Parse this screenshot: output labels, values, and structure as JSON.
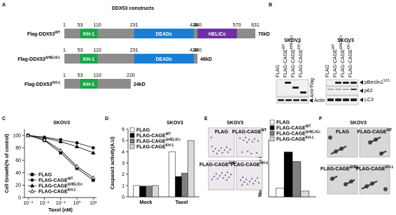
{
  "panel_labels": [
    "A",
    "B",
    "C",
    "D",
    "E",
    "F"
  ],
  "constructs": {
    "title": "DDX53 constructs",
    "rows": [
      {
        "name": "Flag-DDX53",
        "sup": "WT",
        "size": "70kD",
        "end": 631,
        "domains": [
          {
            "label": "KH-1",
            "start": 53,
            "end": 110,
            "color": "#1aa64a"
          },
          {
            "label": "DEADc",
            "start": 231,
            "end": 428,
            "color": "#1a7fd4"
          },
          {
            "label": "HELICc",
            "start": 440,
            "end": 570,
            "color": "#7030a0"
          }
        ],
        "positions": [
          1,
          53,
          110,
          231,
          428,
          440,
          570,
          631
        ]
      },
      {
        "name": "Flag-DDX53",
        "sup": "ΔHELICc",
        "size": "48kD",
        "end": 440,
        "domains": [
          {
            "label": "KH-1",
            "start": 53,
            "end": 110,
            "color": "#1aa64a"
          },
          {
            "label": "DEADc",
            "start": 231,
            "end": 428,
            "color": "#1a7fd4"
          }
        ],
        "positions": [
          1,
          53,
          110,
          231,
          428,
          440
        ]
      },
      {
        "name": "Flag-DDX53",
        "sup": "KH-1",
        "size": "24kD",
        "end": 220,
        "domains": [
          {
            "label": "KH-1",
            "start": 53,
            "end": 110,
            "color": "#1aa64a"
          }
        ],
        "positions": [
          1,
          53,
          110,
          220
        ]
      }
    ]
  },
  "blots": {
    "cell": "SKOV3",
    "lanes": [
      {
        "name": "FLAG",
        "sup": ""
      },
      {
        "name": "FLAG-CAGE",
        "sup": "WT"
      },
      {
        "name": "FLAG-CAGE",
        "sup": "ΔHELICc"
      },
      {
        "name": "FLAG-CAGE",
        "sup": "KH-1"
      }
    ],
    "antibody": "Anti-Flag",
    "left_marker": {
      "name": "Actin",
      "sup": ""
    },
    "right_markers": [
      {
        "name": "pBeclin1",
        "sup": "S15"
      },
      {
        "name": "p62",
        "sup": ""
      },
      {
        "name": "LC3",
        "sup": ""
      }
    ]
  },
  "invasion_images": {
    "title": "SKOV3",
    "labels": [
      {
        "name": "FLAG",
        "sup": ""
      },
      {
        "name": "FLAG-CAGE",
        "sup": "WT"
      },
      {
        "name": "FLAG-CAGE",
        "sup": "ΔHELICc"
      },
      {
        "name": "FLAG-CAGE",
        "sup": "KH-1"
      }
    ]
  },
  "colony_images": {
    "title": "SKOV3",
    "labels": [
      {
        "name": "FLAG",
        "sup": ""
      },
      {
        "name": "FLAG-CAGE",
        "sup": "WT"
      },
      {
        "name": "FLAG-CAGE",
        "sup": "ΔHELICc"
      },
      {
        "name": "FLAG-CAGE",
        "sup": "KH-1"
      }
    ]
  },
  "chart_data": [
    {
      "type": "line",
      "title": "SKOV3",
      "y_label": "Cell Growth(% of control)",
      "x_label": "Taxol (nM)",
      "log_x": true,
      "x": [
        0.001,
        0.01,
        0.1,
        1,
        10
      ],
      "xlim": [
        0.0006,
        16
      ],
      "xticks": [
        {
          "value": 0.001,
          "label": "10⁻³"
        },
        {
          "value": 0.01,
          "label": "10⁻²"
        },
        {
          "value": 0.1,
          "label": "10⁻¹"
        },
        {
          "value": 1,
          "label": "10⁰"
        },
        {
          "value": 10,
          "label": "10¹"
        }
      ],
      "ylim": [
        0,
        110
      ],
      "yticks": [
        0,
        20,
        40,
        60,
        80,
        100
      ],
      "series": [
        {
          "name": "FLAG",
          "sup": "",
          "color": "#000000",
          "marker": "square",
          "filled": true,
          "values": [
            100,
            92,
            72,
            47,
            28
          ]
        },
        {
          "name": "FLAG-CAGE",
          "sup": "WT",
          "color": "#000000",
          "marker": "circle",
          "filled": true,
          "values": [
            100,
            97,
            93,
            88,
            80
          ]
        },
        {
          "name": "FLAG-CAGE",
          "sup": "ΔHELICc",
          "color": "#000000",
          "marker": "triangle",
          "filled": true,
          "values": [
            100,
            96,
            90,
            82,
            72
          ]
        },
        {
          "name": "FLAG-CAGE",
          "sup": "KH-1",
          "color": "#000000",
          "marker": "triangle",
          "filled": false,
          "values": [
            100,
            93,
            76,
            50,
            32
          ]
        }
      ]
    },
    {
      "type": "bar",
      "title": "SKOV3",
      "y_label": "Caspase3 activity(A.U)",
      "categories": [
        "Mock",
        "Taxol"
      ],
      "ylim": [
        0,
        6
      ],
      "yticks": [
        0,
        1,
        2,
        3,
        4,
        5,
        6
      ],
      "series": [
        {
          "name": "FLAG",
          "sup": "",
          "color": "#ffffff",
          "values": [
            1,
            4
          ]
        },
        {
          "name": "FLAG-CAGE",
          "sup": "WT",
          "color": "#000000",
          "values": [
            0.95,
            1.8
          ]
        },
        {
          "name": "FLAG-CAGE",
          "sup": "ΔHELICc",
          "color": "#7f7f7f",
          "values": [
            0.95,
            2.1
          ]
        },
        {
          "name": "FLAG-CAGE",
          "sup": "KH-1",
          "color": "#d9d9d9",
          "values": [
            1,
            5
          ]
        }
      ]
    },
    {
      "type": "bar",
      "y_label": "Number of Cells invaded",
      "categories": [
        null
      ],
      "ylim": [
        0,
        300
      ],
      "yticks": [],
      "series": [
        {
          "name": "FLAG",
          "sup": "",
          "color": "#ffffff",
          "values": [
            45
          ]
        },
        {
          "name": "FLAG-CAGE",
          "sup": "WT",
          "color": "#000000",
          "values": [
            235
          ]
        },
        {
          "name": "FLAG-CAGE",
          "sup": "ΔHELICc",
          "color": "#7f7f7f",
          "values": [
            185
          ]
        },
        {
          "name": "FLAG-CAGE",
          "sup": "KH-1",
          "color": "#d9d9d9",
          "values": [
            30
          ]
        }
      ]
    }
  ]
}
